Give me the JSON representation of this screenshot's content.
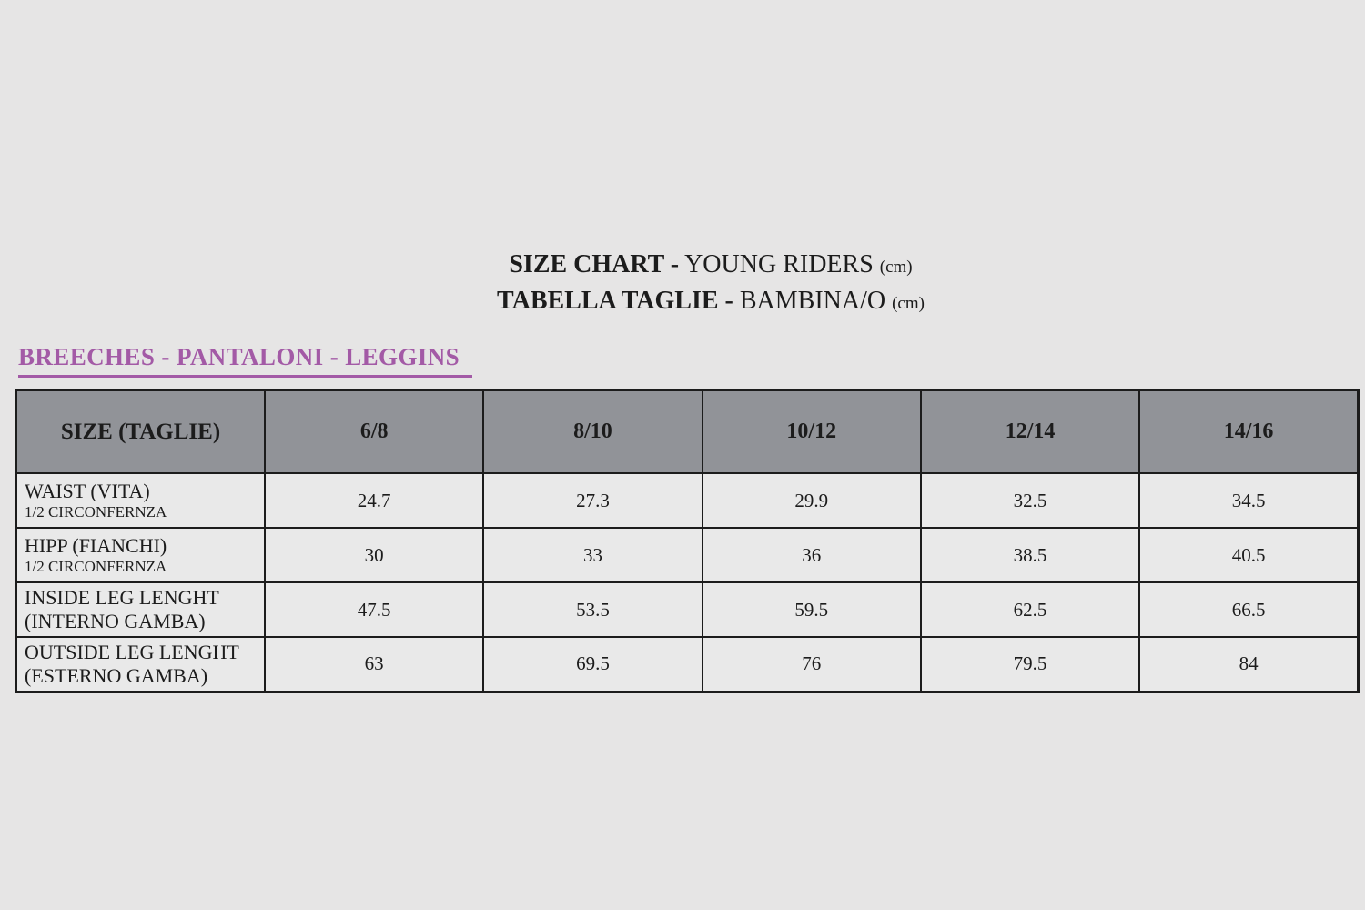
{
  "title": {
    "line1": {
      "bold": "SIZE CHART -",
      "regular": " YOUNG RIDERS ",
      "unit": "(cm)"
    },
    "line2": {
      "bold": "TABELLA TAGLIE -",
      "regular": " BAMBINA/O ",
      "unit": "(cm)"
    }
  },
  "section_heading": {
    "label": "BREECHES - PANTALONI - LEGGINS"
  },
  "colors": {
    "page_background": "#e6e5e5",
    "heading_purple": "#a35aa6",
    "table_header_bg": "#919398",
    "table_row_bg": "#e9e9e9",
    "table_border": "#1c1c1c"
  },
  "chart_data": {
    "type": "table",
    "columns": [
      "SIZE (TAGLIE)",
      "6/8",
      "8/10",
      "10/12",
      "12/14",
      "14/16"
    ],
    "rows": [
      {
        "label": "WAIST (VITA)",
        "sublabel": "1/2 CIRCONFERNZA",
        "values": [
          "24.7",
          "27.3",
          "29.9",
          "32.5",
          "34.5"
        ]
      },
      {
        "label": "HIPP (FIANCHI)",
        "sublabel": "1/2 CIRCONFERNZA",
        "values": [
          "30",
          "33",
          "36",
          "38.5",
          "40.5"
        ]
      },
      {
        "label": "INSIDE LEG LENGHT",
        "sublabel": "(INTERNO GAMBA)",
        "values": [
          "47.5",
          "53.5",
          "59.5",
          "62.5",
          "66.5"
        ]
      },
      {
        "label": "OUTSIDE LEG LENGHT",
        "sublabel": "(ESTERNO GAMBA)",
        "values": [
          "63",
          "69.5",
          "76",
          "79.5",
          "84"
        ]
      }
    ]
  }
}
